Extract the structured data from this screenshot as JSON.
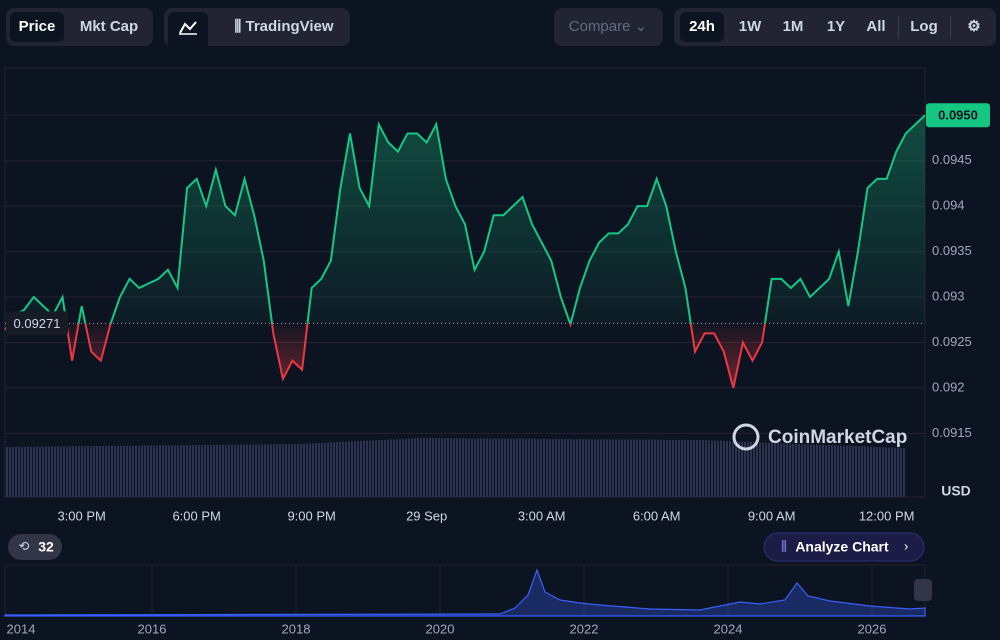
{
  "toolbar": {
    "price": "Price",
    "mkt_cap": "Mkt Cap",
    "tradingview": "TradingView",
    "compare": "Compare",
    "ranges": [
      "24h",
      "1W",
      "1M",
      "1Y",
      "All"
    ],
    "log": "Log"
  },
  "chart_data": {
    "type": "line",
    "values": [
      0.09264,
      0.0928,
      0.09286,
      0.093,
      0.0929,
      0.0928,
      0.093,
      0.0923,
      0.0929,
      0.0924,
      0.0923,
      0.0927,
      0.093,
      0.0932,
      0.0931,
      0.09315,
      0.0932,
      0.0933,
      0.0931,
      0.0942,
      0.0943,
      0.094,
      0.0944,
      0.094,
      0.0939,
      0.0943,
      0.0939,
      0.0934,
      0.0926,
      0.0921,
      0.0923,
      0.0922,
      0.0931,
      0.0932,
      0.0934,
      0.0942,
      0.0948,
      0.0942,
      0.094,
      0.0949,
      0.0947,
      0.0946,
      0.0948,
      0.0948,
      0.0947,
      0.0949,
      0.0943,
      0.094,
      0.0938,
      0.0933,
      0.0935,
      0.0939,
      0.0939,
      0.094,
      0.0941,
      0.0938,
      0.0936,
      0.0934,
      0.093,
      0.0927,
      0.0931,
      0.0934,
      0.0936,
      0.0937,
      0.0937,
      0.0938,
      0.094,
      0.094,
      0.0943,
      0.094,
      0.0935,
      0.0931,
      0.0924,
      0.0926,
      0.0926,
      0.0924,
      0.092,
      0.0925,
      0.0923,
      0.0925,
      0.0932,
      0.0932,
      0.0931,
      0.0932,
      0.093,
      0.0931,
      0.0932,
      0.0935,
      0.0929,
      0.0935,
      0.0942,
      0.0943,
      0.0943,
      0.0946,
      0.0948,
      0.0949,
      0.095
    ],
    "up_color": "#16c784",
    "down_color": "#ea3943",
    "baseline": 0.09271,
    "current_price": {
      "value": 0.095,
      "label": "0.0950"
    },
    "xlim": [
      0,
      96
    ],
    "xticks": [
      {
        "value": 8,
        "label": "3:00 PM"
      },
      {
        "value": 20,
        "label": "6:00 PM"
      },
      {
        "value": 32,
        "label": "9:00 PM"
      },
      {
        "value": 44,
        "label": "29 Sep"
      },
      {
        "value": 56,
        "label": "3:00 AM"
      },
      {
        "value": 68,
        "label": "6:00 AM"
      },
      {
        "value": 80,
        "label": "9:00 AM"
      },
      {
        "value": 92,
        "label": "12:00 PM"
      }
    ],
    "ylim": [
      0.0908,
      0.09552
    ],
    "yticks": [
      0.0915,
      0.092,
      0.0925,
      0.093,
      0.0935,
      0.094,
      0.0945
    ],
    "y_label": "USD",
    "grid": true,
    "watermark": "CoinMarketCap"
  },
  "footer": {
    "count": "32",
    "analyze": "Analyze Chart",
    "years": [
      "2014",
      "2016",
      "2018",
      "2020",
      "2022",
      "2024",
      "2026"
    ]
  }
}
